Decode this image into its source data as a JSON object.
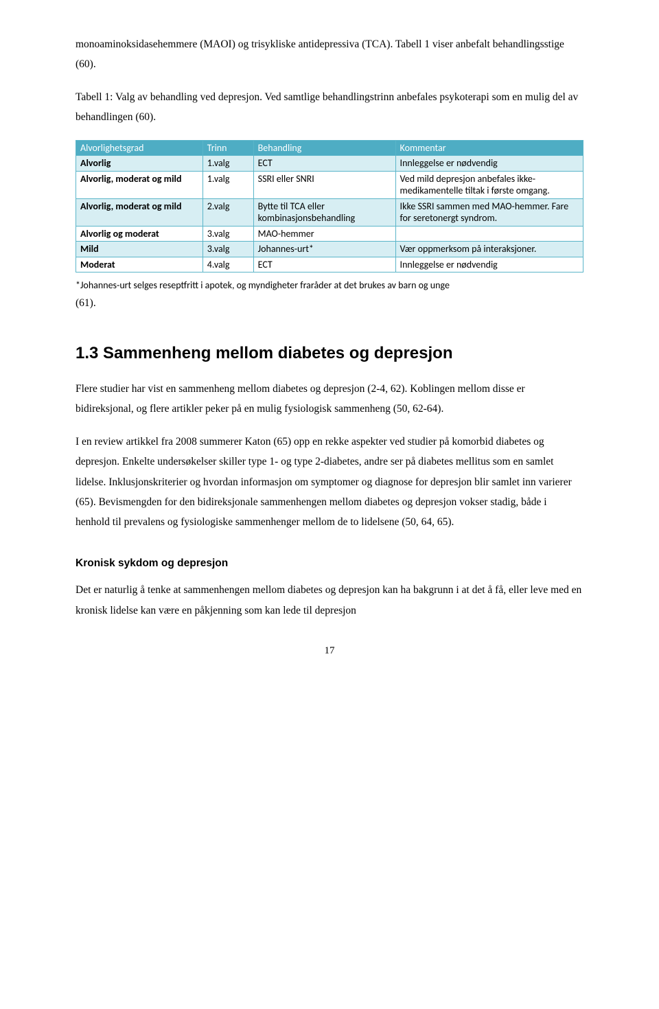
{
  "intro": {
    "p1": "monoaminoksidasehemmere (MAOI) og trisykliske antidepressiva (TCA). Tabell 1 viser anbefalt behandlingsstige (60).",
    "p2": "Tabell 1: Valg av behandling ved depresjon. Ved samtlige behandlingstrinn anbefales psykoterapi som en mulig del av behandlingen (60)."
  },
  "table": {
    "headers": [
      "Alvorlighetsgrad",
      "Trinn",
      "Behandling",
      "Kommentar"
    ],
    "rows": [
      {
        "band": true,
        "cells": [
          "Alvorlig",
          "1.valg",
          "ECT",
          "Innleggelse er nødvendig"
        ]
      },
      {
        "band": false,
        "cells": [
          "Alvorlig, moderat og mild",
          "1.valg",
          "SSRI eller SNRI",
          "Ved mild depresjon anbefales ikke-medikamentelle tiltak i første omgang."
        ]
      },
      {
        "band": true,
        "cells": [
          "Alvorlig, moderat og mild",
          "2.valg",
          "Bytte til TCA eller kombinasjonsbehandling",
          "Ikke SSRI sammen med MAO-hemmer. Fare for seretonergt syndrom."
        ]
      },
      {
        "band": false,
        "cells": [
          "Alvorlig og moderat",
          "3.valg",
          "MAO-hemmer",
          ""
        ]
      },
      {
        "band": true,
        "cells": [
          "Mild",
          "3.valg",
          "Johannes-urt*",
          "Vær oppmerksom på interaksjoner."
        ]
      },
      {
        "band": false,
        "cells": [
          "Moderat",
          "4.valg",
          "ECT",
          "Innleggelse er nødvendig"
        ]
      }
    ],
    "footnote": "*Johannes-urt selges reseptfritt i apotek, og myndigheter fraråder at det brukes av barn og unge",
    "after": "(61)."
  },
  "section": {
    "heading": "1.3  Sammenheng mellom diabetes og depresjon",
    "p1": "Flere studier har vist en sammenheng mellom diabetes og depresjon (2-4, 62). Koblingen mellom disse er bidireksjonal, og flere artikler peker på en mulig fysiologisk sammenheng (50, 62-64).",
    "p2": "I en review artikkel fra 2008 summerer Katon (65) opp en rekke aspekter ved studier på komorbid diabetes og depresjon. Enkelte undersøkelser skiller type 1- og type 2-diabetes, andre ser på diabetes mellitus som en samlet lidelse. Inklusjonskriterier og hvordan informasjon om symptomer og diagnose for depresjon blir samlet inn varierer (65). Bevismengden for den bidireksjonale sammenhengen mellom diabetes og depresjon vokser stadig, både i henhold til prevalens og fysiologiske sammenhenger mellom de to lidelsene (50, 64, 65)."
  },
  "sub": {
    "heading": "Kronisk sykdom og depresjon",
    "p1": "Det er naturlig å tenke at sammenhengen mellom diabetes og depresjon kan ha bakgrunn i at det å få, eller leve med en kronisk lidelse kan være en påkjenning som kan lede til depresjon"
  },
  "pagenum": "17",
  "colors": {
    "header_bg": "#4eadc4",
    "band_bg": "#d7eef3",
    "border": "#5ab5c9"
  }
}
